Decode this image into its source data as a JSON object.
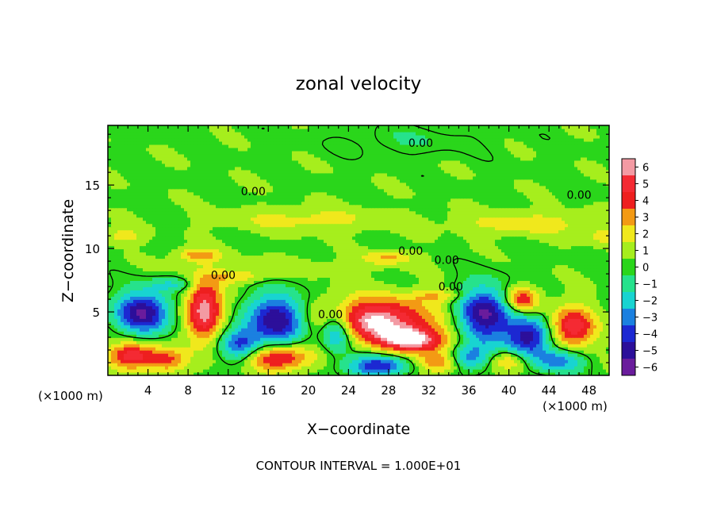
{
  "chart_data": {
    "type": "heatmap",
    "title": "zonal velocity",
    "xlabel": "X−coordinate",
    "ylabel": "Z−coordinate",
    "x_unit_left": "(×1000 m)",
    "x_unit_right": "(×1000 m)",
    "footer": "CONTOUR INTERVAL = 1.000E+01",
    "xlim": [
      0,
      50
    ],
    "ylim": [
      0,
      19.7
    ],
    "x_ticks": [
      4,
      8,
      12,
      16,
      20,
      24,
      28,
      32,
      36,
      40,
      44,
      48
    ],
    "x_tick_labels": [
      "4",
      "8",
      "12",
      "16",
      "20",
      "24",
      "28",
      "32",
      "36",
      "40",
      "44",
      "48"
    ],
    "y_ticks": [
      5,
      10,
      15
    ],
    "y_tick_labels": [
      "5",
      "10",
      "15"
    ],
    "colorbar": {
      "levels": [
        6,
        5,
        4,
        3,
        2,
        1,
        0,
        -1,
        -2,
        -3,
        -4,
        -5,
        -6
      ],
      "labels": [
        "6",
        "5",
        "4",
        "3",
        "2",
        "1",
        "0",
        "−1",
        "−2",
        "−3",
        "−4",
        "−5",
        "−6"
      ],
      "colors": [
        "#f39aa3",
        "#f42a33",
        "#ee1f1f",
        "#f39a14",
        "#f0e81c",
        "#a6ee1d",
        "#2ad61b",
        "#26e28c",
        "#18d4d1",
        "#1b80e0",
        "#1c28d2",
        "#2c0f9a",
        "#6a1c9c"
      ]
    },
    "contour_labels": [
      {
        "text": "0.00",
        "x": 31.2,
        "z": 18.0
      },
      {
        "text": "0.00",
        "x": 14.5,
        "z": 14.2
      },
      {
        "text": "0.00",
        "x": 47.0,
        "z": 13.9
      },
      {
        "text": "0.00",
        "x": 30.2,
        "z": 9.5
      },
      {
        "text": "0.00",
        "x": 33.8,
        "z": 8.8
      },
      {
        "text": "0.00",
        "x": 11.5,
        "z": 7.6
      },
      {
        "text": "0.00",
        "x": 34.2,
        "z": 6.7
      },
      {
        "text": "0.00",
        "x": 22.2,
        "z": 4.5
      }
    ],
    "blobs": [
      {
        "x": 3.5,
        "z": 5.0,
        "amp": -6.0,
        "rx": 2.7,
        "rz": 1.6
      },
      {
        "x": 9.6,
        "z": 5.2,
        "amp": 6.0,
        "rx": 1.8,
        "rz": 2.4
      },
      {
        "x": 17.0,
        "z": 4.4,
        "amp": -6.0,
        "rx": 3.0,
        "rz": 2.0
      },
      {
        "x": 26.5,
        "z": 4.4,
        "amp": 6.0,
        "rx": 6.0,
        "rz": 1.7
      },
      {
        "x": 30.5,
        "z": 2.8,
        "amp": 5.5,
        "rx": 3.5,
        "rz": 1.0
      },
      {
        "x": 37.5,
        "z": 4.8,
        "amp": -6.0,
        "rx": 2.8,
        "rz": 2.2
      },
      {
        "x": 41.3,
        "z": 6.0,
        "amp": 4.5,
        "rx": 1.6,
        "rz": 1.0
      },
      {
        "x": 46.3,
        "z": 3.8,
        "amp": 5.0,
        "rx": 2.3,
        "rz": 1.6
      },
      {
        "x": 42.0,
        "z": 3.0,
        "amp": -5.5,
        "rx": 2.2,
        "rz": 1.6
      },
      {
        "x": 2.5,
        "z": 1.6,
        "amp": 5.0,
        "rx": 2.5,
        "rz": 1.0
      },
      {
        "x": 6.0,
        "z": 1.2,
        "amp": 3.2,
        "rx": 1.8,
        "rz": 0.9
      },
      {
        "x": 13.2,
        "z": 2.5,
        "amp": -4.0,
        "rx": 1.9,
        "rz": 1.4
      },
      {
        "x": 17.0,
        "z": 1.4,
        "amp": 5.0,
        "rx": 3.2,
        "rz": 1.0
      },
      {
        "x": 22.8,
        "z": 3.6,
        "amp": -5.0,
        "rx": 1.6,
        "rz": 1.6
      },
      {
        "x": 27.0,
        "z": 0.8,
        "amp": -5.0,
        "rx": 3.0,
        "rz": 0.8
      },
      {
        "x": 33.0,
        "z": 1.0,
        "amp": 3.5,
        "rx": 2.2,
        "rz": 0.8
      },
      {
        "x": 36.0,
        "z": 1.4,
        "amp": -3.5,
        "rx": 2.2,
        "rz": 1.0
      },
      {
        "x": 40.0,
        "z": 1.2,
        "amp": 3.0,
        "rx": 2.0,
        "rz": 0.8
      },
      {
        "x": 45.0,
        "z": 1.2,
        "amp": -3.5,
        "rx": 2.5,
        "rz": 0.9
      },
      {
        "x": 9.0,
        "z": 9.5,
        "amp": 3.0,
        "rx": 2.2,
        "rz": 0.5
      },
      {
        "x": 28.0,
        "z": 9.3,
        "amp": 2.5,
        "rx": 2.5,
        "rz": 0.5
      },
      {
        "x": 13.0,
        "z": 7.8,
        "amp": 2.0,
        "rx": 2.8,
        "rz": 0.5
      },
      {
        "x": 6.5,
        "z": 7.2,
        "amp": -2.0,
        "rx": 2.5,
        "rz": 0.5
      },
      {
        "x": 33.0,
        "z": 6.3,
        "amp": 2.0,
        "rx": 3.0,
        "rz": 0.5
      },
      {
        "x": 20.0,
        "z": 12.3,
        "amp": 1.6,
        "rx": 8.0,
        "rz": 0.9
      },
      {
        "x": 42.0,
        "z": 12.0,
        "amp": 1.8,
        "rx": 7.0,
        "rz": 0.9
      },
      {
        "x": 1.5,
        "z": 11.0,
        "amp": 1.8,
        "rx": 2.0,
        "rz": 0.6
      },
      {
        "x": 49.5,
        "z": 11.0,
        "amp": 2.0,
        "rx": 1.5,
        "rz": 0.6
      },
      {
        "x": 30.0,
        "z": 18.5,
        "amp": -0.8,
        "rx": 7.0,
        "rz": 1.2
      },
      {
        "x": 18.0,
        "z": 8.6,
        "amp": 0.8,
        "rx": 8.0,
        "rz": 0.7
      }
    ]
  }
}
